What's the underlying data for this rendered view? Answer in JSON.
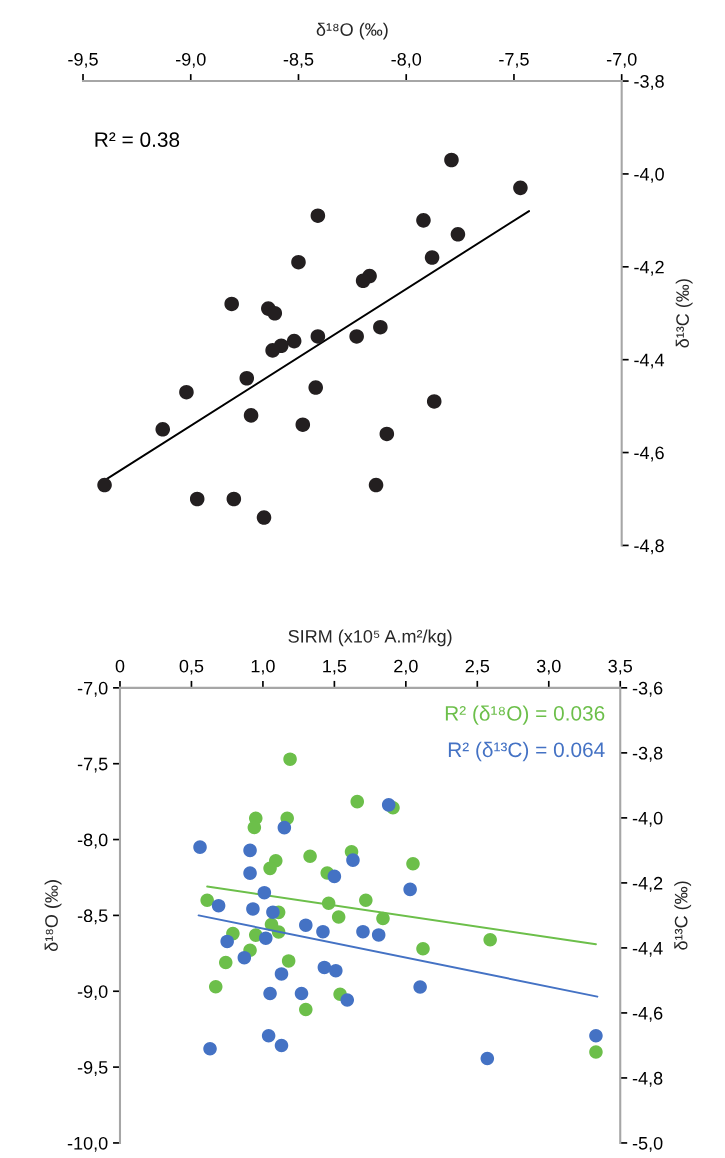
{
  "chart_data": [
    {
      "type": "scatter",
      "xlabel": "δ¹⁸O (‰)",
      "ylabel": "δ¹³C (‰)",
      "xlim": [
        -9.5,
        -7.0
      ],
      "xticks": [
        {
          "value": -9.5,
          "label": "-9,5"
        },
        {
          "value": -9.0,
          "label": "-9,0"
        },
        {
          "value": -8.5,
          "label": "-8,5"
        },
        {
          "value": -8.0,
          "label": "-8,0"
        },
        {
          "value": -7.5,
          "label": "-7,5"
        },
        {
          "value": -7.0,
          "label": "-7,0"
        }
      ],
      "ylim": [
        -4.8,
        -3.8
      ],
      "yticks": [
        {
          "value": -4.8,
          "label": "-4,8"
        },
        {
          "value": -4.6,
          "label": "-4,6"
        },
        {
          "value": -4.4,
          "label": "-4,4"
        },
        {
          "value": -4.2,
          "label": "-4,2"
        },
        {
          "value": -4.0,
          "label": "-4,0"
        },
        {
          "value": -3.8,
          "label": "-3,8"
        }
      ],
      "annotations": [
        "R² = 0.38"
      ],
      "series": [
        {
          "marker": "circle",
          "color": "#231f20",
          "x": [
            -7.79,
            -7.47,
            -8.41,
            -7.92,
            -7.76,
            -7.88,
            -8.5,
            -8.17,
            -8.2,
            -8.81,
            -8.64,
            -8.61,
            -8.12,
            -8.52,
            -8.41,
            -8.23,
            -8.58,
            -8.62,
            -8.74,
            -9.02,
            -8.42,
            -7.87,
            -8.72,
            -9.13,
            -8.48,
            -8.09,
            -8.14,
            -9.4,
            -8.97,
            -8.8,
            -8.66
          ],
          "values": [
            -3.97,
            -4.03,
            -4.09,
            -4.1,
            -4.13,
            -4.18,
            -4.19,
            -4.22,
            -4.23,
            -4.28,
            -4.29,
            -4.3,
            -4.33,
            -4.36,
            -4.35,
            -4.35,
            -4.37,
            -4.38,
            -4.44,
            -4.47,
            -4.46,
            -4.49,
            -4.52,
            -4.55,
            -4.54,
            -4.56,
            -4.67,
            -4.67,
            -4.7,
            -4.7,
            -4.74
          ]
        },
        {
          "type": "line",
          "marker": "none",
          "color": "#000000",
          "x": [
            -9.4,
            -7.43
          ],
          "values": [
            -4.66,
            -4.08
          ]
        }
      ]
    },
    {
      "type": "scatter",
      "xlabel": "SIRM (x10⁵ A.m²/kg)",
      "ylabel": "δ¹⁸O (‰)",
      "y2label": "δ¹³C (‰)",
      "xlim": [
        0,
        3.5
      ],
      "xticks": [
        0,
        {
          "value": 0.5,
          "label": "0,5"
        },
        {
          "value": 1.0,
          "label": "1,0"
        },
        {
          "value": 1.5,
          "label": "1,5"
        },
        {
          "value": 2.0,
          "label": "2,0"
        },
        {
          "value": 2.5,
          "label": "2,5"
        },
        {
          "value": 3.0,
          "label": "3,0"
        },
        {
          "value": 3.5,
          "label": "3,5"
        }
      ],
      "ylim": [
        -10.0,
        -7.0
      ],
      "yticks": [
        {
          "value": -10.0,
          "label": "-10,0"
        },
        {
          "value": -9.5,
          "label": "-9,5"
        },
        {
          "value": -9.0,
          "label": "-9,0"
        },
        {
          "value": -8.5,
          "label": "-8,5"
        },
        {
          "value": -8.0,
          "label": "-8,0"
        },
        {
          "value": -7.5,
          "label": "-7,5"
        },
        {
          "value": -7.0,
          "label": "-7,0"
        }
      ],
      "y2lim": [
        -5.0,
        -3.6
      ],
      "y2ticks": [
        {
          "value": -5.0,
          "label": "-5,0"
        },
        {
          "value": -4.8,
          "label": "-4,8"
        },
        {
          "value": -4.6,
          "label": "-4,6"
        },
        {
          "value": -4.4,
          "label": "-4,4"
        },
        {
          "value": -4.2,
          "label": "-4,2"
        },
        {
          "value": -4.0,
          "label": "-4,0"
        },
        {
          "value": -3.8,
          "label": "-3,8"
        },
        {
          "value": -3.6,
          "label": "-3,6"
        }
      ],
      "annotations": [
        "R² (δ¹⁸O) = 0.036",
        "R² (δ¹³C) = 0.064"
      ],
      "series": [
        {
          "axis": "y",
          "marker": "circle",
          "color": "#6cbf4a",
          "x": [
            1.19,
            1.66,
            1.91,
            0.95,
            1.17,
            0.94,
            1.33,
            1.62,
            1.09,
            1.05,
            2.05,
            1.45,
            0.61,
            1.46,
            1.72,
            1.11,
            1.53,
            1.84,
            1.06,
            1.11,
            0.79,
            0.95,
            2.59,
            0.91,
            2.12,
            1.18,
            0.74,
            0.67,
            1.54,
            1.3,
            3.33
          ],
          "values": [
            -7.47,
            -7.75,
            -7.79,
            -7.86,
            -7.86,
            -7.92,
            -8.11,
            -8.08,
            -8.14,
            -8.19,
            -8.16,
            -8.22,
            -8.4,
            -8.42,
            -8.4,
            -8.48,
            -8.51,
            -8.52,
            -8.56,
            -8.61,
            -8.62,
            -8.63,
            -8.66,
            -8.73,
            -8.72,
            -8.8,
            -8.81,
            -8.97,
            -9.02,
            -9.12,
            -9.4
          ]
        },
        {
          "axis": "y2",
          "marker": "circle",
          "color": "#4472c4",
          "x": [
            1.88,
            1.15,
            0.56,
            0.91,
            1.63,
            0.91,
            1.5,
            2.03,
            1.01,
            0.69,
            0.93,
            1.07,
            1.3,
            1.42,
            1.7,
            1.81,
            1.02,
            0.75,
            0.87,
            1.13,
            1.43,
            1.51,
            1.05,
            1.27,
            1.59,
            2.1,
            1.04,
            1.13,
            0.63,
            2.57,
            3.33
          ],
          "values": [
            -3.96,
            -4.03,
            -4.09,
            -4.1,
            -4.13,
            -4.17,
            -4.18,
            -4.22,
            -4.23,
            -4.27,
            -4.28,
            -4.29,
            -4.33,
            -4.35,
            -4.35,
            -4.36,
            -4.37,
            -4.38,
            -4.43,
            -4.48,
            -4.46,
            -4.47,
            -4.54,
            -4.54,
            -4.56,
            -4.52,
            -4.67,
            -4.7,
            -4.71,
            -4.74,
            -4.67
          ]
        },
        {
          "type": "line",
          "axis": "y",
          "marker": "none",
          "color": "#6cbf4a",
          "x": [
            0.61,
            3.33
          ],
          "values": [
            -8.31,
            -8.69
          ]
        },
        {
          "type": "line",
          "axis": "y2",
          "marker": "none",
          "color": "#4472c4",
          "x": [
            0.55,
            3.34
          ],
          "values": [
            -4.3,
            -4.55
          ]
        }
      ]
    }
  ]
}
